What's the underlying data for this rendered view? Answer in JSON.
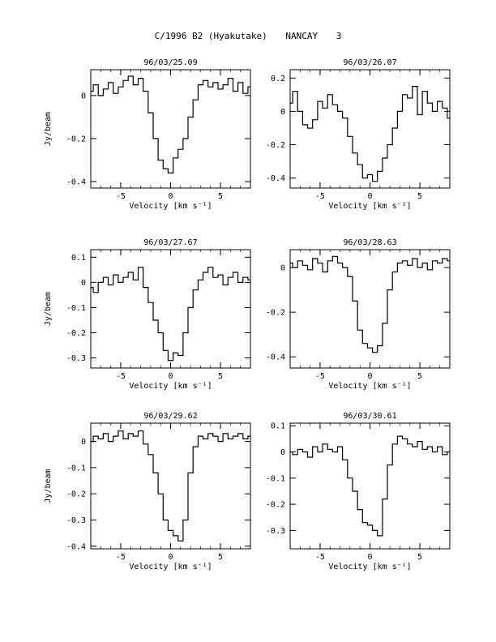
{
  "header": {
    "title": "C/1996 B2 (Hyakutake)",
    "station": "NANCAY",
    "page": "3"
  },
  "chart_data": [
    {
      "type": "line",
      "title": "96/03/25.09",
      "xlabel": "Velocity [km s⁻¹]",
      "ylabel": "Jy/beam",
      "xlim": [
        -8,
        8
      ],
      "ylim": [
        -0.43,
        0.12
      ],
      "yticks": [
        0,
        -0.2,
        -0.4
      ],
      "ytick_labels": [
        "0",
        "-0.2",
        "-0.4"
      ],
      "xticks": [
        -5,
        0,
        5
      ],
      "xtick_labels": [
        "-5",
        "0",
        "5"
      ],
      "x": [
        -8,
        -7.5,
        -7,
        -6.5,
        -6,
        -5.5,
        -5,
        -4.5,
        -4,
        -3.5,
        -3,
        -2.5,
        -2,
        -1.5,
        -1,
        -0.5,
        0,
        0.5,
        1,
        1.5,
        2,
        2.5,
        3,
        3.5,
        4,
        4.5,
        5,
        5.5,
        6,
        6.5,
        7,
        7.5,
        8
      ],
      "y": [
        0.02,
        0.05,
        0.0,
        0.03,
        0.06,
        0.01,
        0.04,
        0.07,
        0.09,
        0.05,
        0.08,
        0.02,
        -0.08,
        -0.2,
        -0.3,
        -0.34,
        -0.36,
        -0.29,
        -0.25,
        -0.2,
        -0.1,
        -0.02,
        0.05,
        0.07,
        0.04,
        0.06,
        0.03,
        0.05,
        0.08,
        0.02,
        0.06,
        0.01,
        0.04
      ]
    },
    {
      "type": "line",
      "title": "96/03/26.07",
      "xlabel": "Velocity [km s⁻¹]",
      "ylabel": "",
      "xlim": [
        -8,
        8
      ],
      "ylim": [
        -0.46,
        0.25
      ],
      "yticks": [
        0.2,
        0,
        -0.2,
        -0.4
      ],
      "ytick_labels": [
        "0.2",
        "0",
        "-0.2",
        "-0.4"
      ],
      "xticks": [
        -5,
        0,
        5
      ],
      "xtick_labels": [
        "-5",
        "0",
        "5"
      ],
      "x": [
        -8,
        -7.5,
        -7,
        -6.5,
        -6,
        -5.5,
        -5,
        -4.5,
        -4,
        -3.5,
        -3,
        -2.5,
        -2,
        -1.5,
        -1,
        -0.5,
        0,
        0.5,
        1,
        1.5,
        2,
        2.5,
        3,
        3.5,
        4,
        4.5,
        5,
        5.5,
        6,
        6.5,
        7,
        7.5,
        8
      ],
      "y": [
        0.05,
        0.12,
        0.0,
        -0.08,
        -0.1,
        -0.05,
        0.06,
        0.02,
        0.1,
        0.04,
        0.0,
        -0.04,
        -0.15,
        -0.25,
        -0.32,
        -0.4,
        -0.38,
        -0.42,
        -0.36,
        -0.28,
        -0.2,
        -0.1,
        0.0,
        0.1,
        0.08,
        0.15,
        -0.02,
        0.12,
        0.05,
        0.0,
        0.06,
        0.02,
        -0.04
      ]
    },
    {
      "type": "line",
      "title": "96/03/27.67",
      "xlabel": "Velocity [km s⁻¹]",
      "ylabel": "Jy/beam",
      "xlim": [
        -8,
        8
      ],
      "ylim": [
        -0.34,
        0.13
      ],
      "yticks": [
        0.1,
        0,
        -0.1,
        -0.2,
        -0.3
      ],
      "ytick_labels": [
        "0.1",
        "0",
        "-0.1",
        "-0.2",
        "-0.3"
      ],
      "xticks": [
        -5,
        0,
        5
      ],
      "xtick_labels": [
        "-5",
        "0",
        "5"
      ],
      "x": [
        -8,
        -7.5,
        -7,
        -6.5,
        -6,
        -5.5,
        -5,
        -4.5,
        -4,
        -3.5,
        -3,
        -2.5,
        -2,
        -1.5,
        -1,
        -0.5,
        0,
        0.5,
        1,
        1.5,
        2,
        2.5,
        3,
        3.5,
        4,
        4.5,
        5,
        5.5,
        6,
        6.5,
        7,
        7.5,
        8
      ],
      "y": [
        -0.02,
        -0.04,
        0.0,
        0.02,
        -0.01,
        0.03,
        0.0,
        0.02,
        0.04,
        0.01,
        0.06,
        -0.02,
        -0.08,
        -0.15,
        -0.2,
        -0.27,
        -0.31,
        -0.28,
        -0.29,
        -0.2,
        -0.1,
        -0.03,
        0.01,
        0.04,
        0.06,
        0.02,
        0.03,
        -0.01,
        0.02,
        0.04,
        0.0,
        0.02,
        0.01
      ]
    },
    {
      "type": "line",
      "title": "96/03/28.63",
      "xlabel": "Velocity [km s⁻¹]",
      "ylabel": "",
      "xlim": [
        -8,
        8
      ],
      "ylim": [
        -0.45,
        0.08
      ],
      "yticks": [
        0,
        -0.2,
        -0.4
      ],
      "ytick_labels": [
        "0",
        "-0.2",
        "-0.4"
      ],
      "xticks": [
        -5,
        0,
        5
      ],
      "xtick_labels": [
        "-5",
        "0",
        "5"
      ],
      "x": [
        -8,
        -7.5,
        -7,
        -6.5,
        -6,
        -5.5,
        -5,
        -4.5,
        -4,
        -3.5,
        -3,
        -2.5,
        -2,
        -1.5,
        -1,
        -0.5,
        0,
        0.5,
        1,
        1.5,
        2,
        2.5,
        3,
        3.5,
        4,
        4.5,
        5,
        5.5,
        6,
        6.5,
        7,
        7.5,
        8
      ],
      "y": [
        0.02,
        0.0,
        0.03,
        0.01,
        -0.01,
        0.04,
        0.02,
        -0.02,
        0.03,
        0.05,
        0.02,
        0.0,
        -0.04,
        -0.15,
        -0.28,
        -0.34,
        -0.36,
        -0.38,
        -0.35,
        -0.25,
        -0.1,
        -0.02,
        0.02,
        0.03,
        0.01,
        0.04,
        0.0,
        0.02,
        -0.01,
        0.03,
        0.02,
        0.04,
        0.03
      ]
    },
    {
      "type": "line",
      "title": "96/03/29.62",
      "xlabel": "Velocity [km s⁻¹]",
      "ylabel": "Jy/beam",
      "xlim": [
        -8,
        8
      ],
      "ylim": [
        -0.41,
        0.07
      ],
      "yticks": [
        0,
        -0.1,
        -0.2,
        -0.3,
        -0.4
      ],
      "ytick_labels": [
        "0",
        "-0.1",
        "-0.2",
        "-0.3",
        "-0.4"
      ],
      "xticks": [
        -5,
        0,
        5
      ],
      "xtick_labels": [
        "-5",
        "0",
        "5"
      ],
      "x": [
        -8,
        -7.5,
        -7,
        -6.5,
        -6,
        -5.5,
        -5,
        -4.5,
        -4,
        -3.5,
        -3,
        -2.5,
        -2,
        -1.5,
        -1,
        -0.5,
        0,
        0.5,
        1,
        1.5,
        2,
        2.5,
        3,
        3.5,
        4,
        4.5,
        5,
        5.5,
        6,
        6.5,
        7,
        7.5,
        8
      ],
      "y": [
        0.0,
        0.02,
        0.01,
        0.03,
        0.0,
        0.02,
        0.04,
        0.01,
        0.03,
        0.02,
        0.04,
        -0.01,
        -0.05,
        -0.12,
        -0.2,
        -0.3,
        -0.34,
        -0.36,
        -0.38,
        -0.3,
        -0.12,
        -0.02,
        0.02,
        0.01,
        0.03,
        0.02,
        0.0,
        0.03,
        0.01,
        0.02,
        0.03,
        0.01,
        0.02
      ]
    },
    {
      "type": "line",
      "title": "96/03/30.61",
      "xlabel": "Velocity [km s⁻¹]",
      "ylabel": "",
      "xlim": [
        -8,
        8
      ],
      "ylim": [
        -0.37,
        0.11
      ],
      "yticks": [
        0.1,
        0,
        -0.1,
        -0.2,
        -0.3
      ],
      "ytick_labels": [
        "0.1",
        "0",
        "-0.1",
        "-0.2",
        "-0.3"
      ],
      "xticks": [
        -5,
        0,
        5
      ],
      "xtick_labels": [
        "-5",
        "0",
        "5"
      ],
      "x": [
        -8,
        -7.5,
        -7,
        -6.5,
        -6,
        -5.5,
        -5,
        -4.5,
        -4,
        -3.5,
        -3,
        -2.5,
        -2,
        -1.5,
        -1,
        -0.5,
        0,
        0.5,
        1,
        1.5,
        2,
        2.5,
        3,
        3.5,
        4,
        4.5,
        5,
        5.5,
        6,
        6.5,
        7,
        7.5,
        8
      ],
      "y": [
        0.0,
        -0.01,
        0.01,
        0.0,
        -0.02,
        0.02,
        0.0,
        0.03,
        0.01,
        0.0,
        0.02,
        -0.03,
        -0.1,
        -0.15,
        -0.22,
        -0.27,
        -0.28,
        -0.3,
        -0.32,
        -0.18,
        -0.05,
        0.03,
        0.06,
        0.05,
        0.03,
        0.02,
        0.04,
        0.01,
        0.02,
        0.0,
        0.02,
        -0.01,
        0.0
      ]
    }
  ]
}
